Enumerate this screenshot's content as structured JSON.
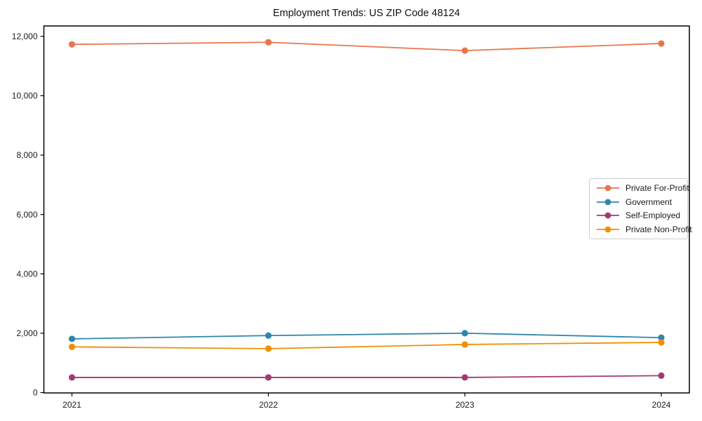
{
  "title": "Employment Trends: US ZIP Code 48124",
  "chart_data": {
    "type": "line",
    "title": "Employment Trends: US ZIP Code 48124",
    "xlabel": "",
    "ylabel": "",
    "categories": [
      "2021",
      "2022",
      "2023",
      "2024"
    ],
    "series": [
      {
        "name": "Private For-Profit",
        "color": "#E8764B",
        "values": [
          11730,
          11800,
          11520,
          11760
        ]
      },
      {
        "name": "Government",
        "color": "#2E86AB",
        "values": [
          1810,
          1920,
          2000,
          1850
        ]
      },
      {
        "name": "Self-Employed",
        "color": "#A23B72",
        "values": [
          510,
          510,
          510,
          570
        ]
      },
      {
        "name": "Private Non-Profit",
        "color": "#F18F01",
        "values": [
          1540,
          1480,
          1620,
          1690
        ]
      }
    ],
    "ylim": [
      0,
      12350
    ],
    "yticks": [
      0,
      2000,
      4000,
      6000,
      8000,
      10000,
      12000
    ],
    "ytick_labels": [
      "0",
      "2,000",
      "4,000",
      "6,000",
      "8,000",
      "10,000",
      "12,000"
    ],
    "grid": false,
    "legend_position": "center-right",
    "marker": "circle",
    "axis_color": "#000000"
  }
}
